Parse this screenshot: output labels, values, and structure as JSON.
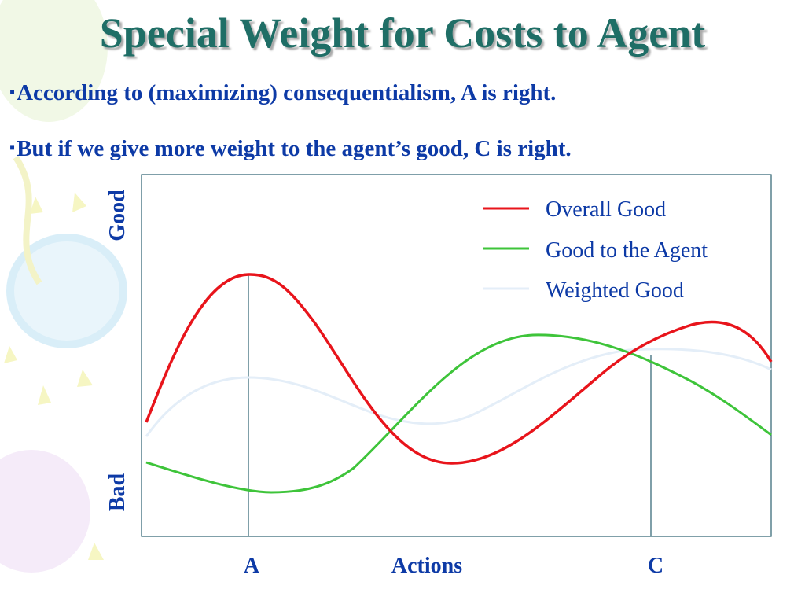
{
  "slide": {
    "title": "Special Weight for Costs to Agent",
    "bullets": [
      "According to (maximizing) consequentialism, A is right.",
      "But if we give more weight to the agent’s good, C is right."
    ]
  },
  "diagram": {
    "y_top_label": "Good",
    "y_bottom_label": "Bad",
    "x_label": "Actions",
    "marker_a": "A",
    "marker_c": "C",
    "legend": [
      {
        "name": "Overall Good",
        "color": "#e8141b"
      },
      {
        "name": "Good to the Agent",
        "color": "#3ec43a"
      },
      {
        "name": "Weighted Good",
        "color": "#e4eef8"
      }
    ]
  },
  "colors": {
    "title": "#1f6e66",
    "bullet_text": "#0d3aa6",
    "axis": "#2b6070",
    "label": "#0d3aa6"
  }
}
